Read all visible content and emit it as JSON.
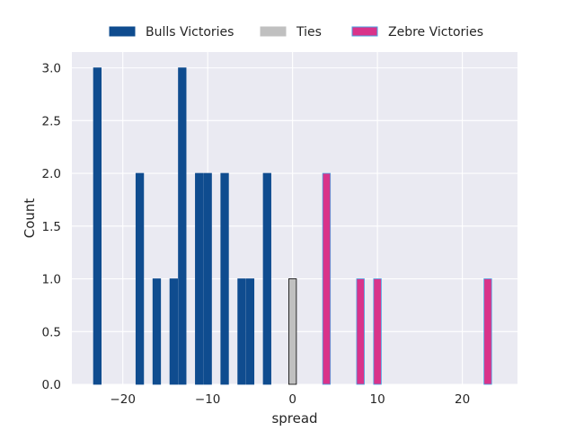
{
  "chart_data": {
    "type": "bar",
    "xlabel": "spread",
    "ylabel": "Count",
    "xlim": [
      -26,
      26.5
    ],
    "ylim": [
      0,
      3.15
    ],
    "xticks": [
      -20,
      -10,
      0,
      10,
      20
    ],
    "xtick_labels": [
      "−20",
      "−10",
      "0",
      "10",
      "20"
    ],
    "yticks": [
      0,
      0.5,
      1,
      1.5,
      2,
      2.5,
      3
    ],
    "ytick_labels": [
      "0.0",
      "0.5",
      "1.0",
      "1.5",
      "2.0",
      "2.5",
      "3.0"
    ],
    "bar_width": 0.9,
    "grid": true,
    "legend_position": "top-center",
    "series": [
      {
        "name": "Bulls Victories",
        "color": "#0f4c8f",
        "edge": "#0f4c8f",
        "points": [
          {
            "x": -23,
            "y": 3
          },
          {
            "x": -18,
            "y": 2
          },
          {
            "x": -16,
            "y": 1
          },
          {
            "x": -14,
            "y": 1
          },
          {
            "x": -13,
            "y": 3
          },
          {
            "x": -11,
            "y": 2
          },
          {
            "x": -10,
            "y": 2
          },
          {
            "x": -8,
            "y": 2
          },
          {
            "x": -6,
            "y": 1
          },
          {
            "x": -5,
            "y": 1
          },
          {
            "x": -3,
            "y": 2
          }
        ]
      },
      {
        "name": "Ties",
        "color": "#c0c0c0",
        "edge": "#000000",
        "points": [
          {
            "x": 0,
            "y": 1
          }
        ]
      },
      {
        "name": "Zebre Victories",
        "color": "#d9338a",
        "edge": "#4a9fe0",
        "points": [
          {
            "x": 4,
            "y": 2
          },
          {
            "x": 8,
            "y": 1
          },
          {
            "x": 10,
            "y": 1
          },
          {
            "x": 23,
            "y": 1
          }
        ]
      }
    ],
    "plot_background": "#eaeaf2",
    "grid_color": "#ffffff"
  }
}
